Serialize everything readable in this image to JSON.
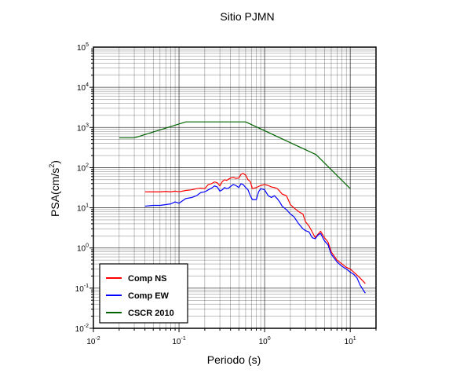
{
  "chart_data": {
    "type": "line",
    "title": "Sitio PJMN",
    "xlabel": "Periodo (s)",
    "ylabel_main": "PSA(cm/s",
    "ylabel_sup": "2",
    "ylabel_close": ")",
    "x_scale": "log",
    "y_scale": "log",
    "xlim": [
      0.01,
      20
    ],
    "ylim": [
      0.01,
      100000
    ],
    "grid": true,
    "legend_position": "bottom-left",
    "x_ticks": [
      {
        "value": 0.01,
        "base": "10",
        "exp": "-2"
      },
      {
        "value": 0.1,
        "base": "10",
        "exp": "-1"
      },
      {
        "value": 1,
        "base": "10",
        "exp": "0"
      },
      {
        "value": 10,
        "base": "10",
        "exp": "1"
      }
    ],
    "y_ticks": [
      {
        "value": 0.01,
        "base": "10",
        "exp": "-2"
      },
      {
        "value": 0.1,
        "base": "10",
        "exp": "-1"
      },
      {
        "value": 1,
        "base": "10",
        "exp": "0"
      },
      {
        "value": 10,
        "base": "10",
        "exp": "1"
      },
      {
        "value": 100,
        "base": "10",
        "exp": "2"
      },
      {
        "value": 1000,
        "base": "10",
        "exp": "3"
      },
      {
        "value": 10000,
        "base": "10",
        "exp": "4"
      },
      {
        "value": 100000,
        "base": "10",
        "exp": "5"
      }
    ],
    "series": [
      {
        "name": "Comp NS",
        "color": "#ff0000",
        "points": [
          [
            0.04,
            25
          ],
          [
            0.05,
            25
          ],
          [
            0.06,
            25
          ],
          [
            0.07,
            25.5
          ],
          [
            0.08,
            25
          ],
          [
            0.09,
            26
          ],
          [
            0.1,
            25
          ],
          [
            0.12,
            27
          ],
          [
            0.14,
            28
          ],
          [
            0.16,
            30
          ],
          [
            0.18,
            31
          ],
          [
            0.2,
            30
          ],
          [
            0.22,
            38
          ],
          [
            0.24,
            40
          ],
          [
            0.26,
            44
          ],
          [
            0.28,
            42
          ],
          [
            0.3,
            35
          ],
          [
            0.32,
            45
          ],
          [
            0.34,
            50
          ],
          [
            0.36,
            48
          ],
          [
            0.38,
            52
          ],
          [
            0.4,
            55
          ],
          [
            0.43,
            57
          ],
          [
            0.46,
            54
          ],
          [
            0.5,
            55
          ],
          [
            0.53,
            68
          ],
          [
            0.56,
            72
          ],
          [
            0.6,
            65
          ],
          [
            0.64,
            50
          ],
          [
            0.68,
            45
          ],
          [
            0.72,
            30
          ],
          [
            0.8,
            32
          ],
          [
            0.9,
            36
          ],
          [
            1.0,
            38
          ],
          [
            1.1,
            36
          ],
          [
            1.2,
            33
          ],
          [
            1.3,
            32
          ],
          [
            1.4,
            30
          ],
          [
            1.5,
            26
          ],
          [
            1.6,
            22
          ],
          [
            1.8,
            20
          ],
          [
            2.0,
            12
          ],
          [
            2.2,
            10
          ],
          [
            2.5,
            8
          ],
          [
            2.8,
            7
          ],
          [
            3.0,
            4.5
          ],
          [
            3.3,
            3.5
          ],
          [
            3.6,
            2.5
          ],
          [
            3.9,
            1.8
          ],
          [
            4.2,
            2.2
          ],
          [
            4.5,
            2.6
          ],
          [
            5.0,
            1.8
          ],
          [
            5.5,
            1.4
          ],
          [
            6.0,
            0.8
          ],
          [
            7.0,
            0.5
          ],
          [
            8.0,
            0.4
          ],
          [
            9.0,
            0.33
          ],
          [
            10.0,
            0.3
          ],
          [
            11.0,
            0.25
          ],
          [
            13.0,
            0.18
          ],
          [
            15.0,
            0.13
          ]
        ]
      },
      {
        "name": "Comp EW",
        "color": "#0000ff",
        "points": [
          [
            0.04,
            11
          ],
          [
            0.05,
            11.5
          ],
          [
            0.06,
            11.5
          ],
          [
            0.07,
            12
          ],
          [
            0.08,
            12.5
          ],
          [
            0.09,
            14
          ],
          [
            0.1,
            13
          ],
          [
            0.12,
            17
          ],
          [
            0.14,
            18
          ],
          [
            0.16,
            20
          ],
          [
            0.18,
            24
          ],
          [
            0.2,
            25
          ],
          [
            0.22,
            28
          ],
          [
            0.24,
            31
          ],
          [
            0.26,
            35
          ],
          [
            0.28,
            33
          ],
          [
            0.3,
            26
          ],
          [
            0.32,
            28
          ],
          [
            0.34,
            32
          ],
          [
            0.36,
            30
          ],
          [
            0.38,
            31
          ],
          [
            0.4,
            34
          ],
          [
            0.43,
            38
          ],
          [
            0.46,
            36
          ],
          [
            0.5,
            32
          ],
          [
            0.53,
            40
          ],
          [
            0.56,
            38
          ],
          [
            0.6,
            32
          ],
          [
            0.64,
            28
          ],
          [
            0.68,
            20
          ],
          [
            0.72,
            16
          ],
          [
            0.8,
            16
          ],
          [
            0.85,
            25
          ],
          [
            0.9,
            30
          ],
          [
            1.0,
            28
          ],
          [
            1.1,
            20
          ],
          [
            1.2,
            18
          ],
          [
            1.3,
            20
          ],
          [
            1.4,
            17
          ],
          [
            1.5,
            14
          ],
          [
            1.6,
            11
          ],
          [
            1.8,
            9
          ],
          [
            2.0,
            7
          ],
          [
            2.2,
            6
          ],
          [
            2.5,
            4
          ],
          [
            2.8,
            3
          ],
          [
            3.0,
            2.7
          ],
          [
            3.3,
            2.5
          ],
          [
            3.6,
            1.8
          ],
          [
            3.9,
            1.7
          ],
          [
            4.2,
            2.1
          ],
          [
            4.5,
            2.3
          ],
          [
            5.0,
            1.5
          ],
          [
            5.5,
            1.2
          ],
          [
            6.0,
            0.7
          ],
          [
            7.0,
            0.45
          ],
          [
            8.0,
            0.35
          ],
          [
            9.0,
            0.3
          ],
          [
            10.0,
            0.25
          ],
          [
            11.0,
            0.22
          ],
          [
            12.0,
            0.18
          ],
          [
            13.0,
            0.12
          ],
          [
            15.0,
            0.075
          ]
        ]
      },
      {
        "name": "CSCR 2010",
        "color": "#006400",
        "points": [
          [
            0.02,
            550
          ],
          [
            0.03,
            550
          ],
          [
            0.12,
            1375
          ],
          [
            0.6,
            1375
          ],
          [
            4.0,
            210
          ],
          [
            10.0,
            30
          ]
        ]
      }
    ]
  }
}
